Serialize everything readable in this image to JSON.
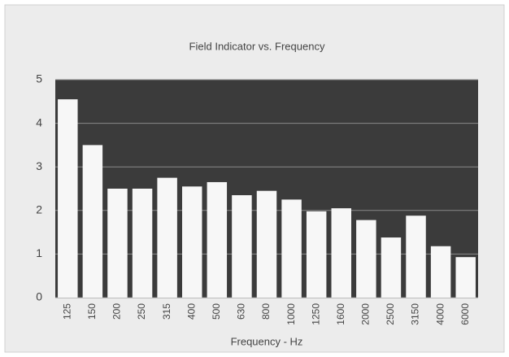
{
  "chart_data": {
    "type": "bar",
    "title": "Field Indicator vs. Frequency",
    "x_label": "Frequency - Hz",
    "categories": [
      "125",
      "150",
      "200",
      "250",
      "315",
      "400",
      "500",
      "630",
      "800",
      "1000",
      "1250",
      "1600",
      "2000",
      "2500",
      "3150",
      "4000",
      "6000"
    ],
    "values": [
      4.55,
      3.5,
      2.5,
      2.5,
      2.75,
      2.55,
      2.65,
      2.35,
      2.45,
      2.25,
      1.98,
      2.05,
      1.78,
      1.38,
      1.88,
      1.18,
      0.93
    ],
    "color": "#f7f7f7",
    "plot_background": "#3b3b3b",
    "ylim": [
      0,
      5
    ],
    "yticks": [
      0,
      1,
      2,
      3,
      4,
      5
    ],
    "grid": true
  }
}
